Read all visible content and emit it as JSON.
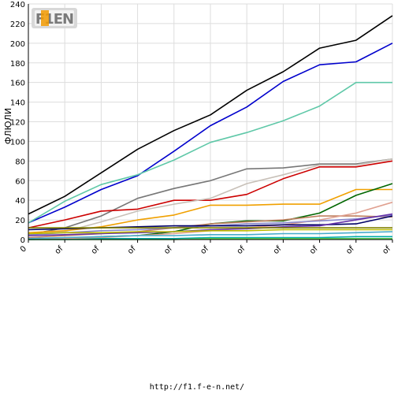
{
  "chart_data": {
    "type": "line",
    "ylabel": "ФЛЮЛИ",
    "ylim": [
      0,
      240
    ],
    "yticks": [
      0,
      20,
      40,
      60,
      80,
      100,
      120,
      140,
      160,
      180,
      200,
      220,
      240
    ],
    "x": [
      "0",
      "of",
      "of",
      "of",
      "of",
      "of",
      "of",
      "of",
      "of",
      "of",
      "of"
    ],
    "grid": true,
    "legend": "none",
    "series": [
      {
        "color": "#000000",
        "values": [
          26,
          44,
          68,
          92,
          111,
          127,
          152,
          171,
          195,
          203,
          228
        ]
      },
      {
        "color": "#0000cc",
        "values": [
          17,
          33,
          51,
          65,
          90,
          116,
          135,
          161,
          178,
          181,
          200
        ]
      },
      {
        "color": "#5fc8a8",
        "values": [
          17,
          39,
          56,
          66,
          81,
          99,
          109,
          121,
          136,
          160,
          160
        ]
      },
      {
        "color": "#777777",
        "values": [
          5,
          12,
          24,
          42,
          52,
          60,
          72,
          73,
          77,
          77,
          82
        ]
      },
      {
        "color": "#cc0000",
        "values": [
          12,
          20,
          29,
          31,
          40,
          40,
          46,
          62,
          74,
          74,
          80
        ]
      },
      {
        "color": "#c8c0b8",
        "values": [
          5,
          8,
          18,
          29,
          36,
          42,
          57,
          66,
          76,
          76,
          82
        ]
      },
      {
        "color": "#f0a000",
        "values": [
          7,
          9,
          13,
          20,
          25,
          35,
          35,
          36,
          36,
          51,
          51
        ]
      },
      {
        "color": "#006600",
        "values": [
          0,
          1,
          3,
          4,
          8,
          16,
          19,
          19,
          27,
          45,
          57
        ]
      },
      {
        "color": "#c08060",
        "values": [
          2,
          4,
          6,
          8,
          12,
          16,
          18,
          20,
          24,
          24,
          23
        ]
      },
      {
        "color": "#e0a090",
        "values": [
          0,
          1,
          2,
          4,
          6,
          9,
          12,
          15,
          20,
          27,
          38
        ]
      },
      {
        "color": "#8888cc",
        "values": [
          5,
          7,
          9,
          10,
          12,
          14,
          16,
          17,
          19,
          21,
          25
        ]
      },
      {
        "color": "#000066",
        "values": [
          10,
          11,
          12,
          13,
          14,
          14,
          14,
          15,
          15,
          16,
          24
        ]
      },
      {
        "color": "#6633aa",
        "values": [
          4,
          5,
          6,
          7,
          8,
          10,
          11,
          13,
          14,
          20,
          26
        ]
      },
      {
        "color": "#808000",
        "values": [
          12,
          12,
          12,
          12,
          12,
          12,
          12,
          12,
          12,
          12,
          12
        ]
      },
      {
        "color": "#bbbb00",
        "values": [
          6,
          7,
          7,
          8,
          8,
          9,
          9,
          10,
          10,
          10,
          10
        ]
      },
      {
        "color": "#44aacc",
        "values": [
          1,
          2,
          3,
          4,
          4,
          5,
          5,
          6,
          6,
          7,
          8
        ]
      },
      {
        "color": "#00aaaa",
        "values": [
          0,
          0,
          1,
          1,
          1,
          2,
          2,
          2,
          2,
          3,
          3
        ]
      },
      {
        "color": "#55cc55",
        "values": [
          0,
          0,
          0,
          0,
          0,
          1,
          1,
          1,
          1,
          1,
          1
        ]
      }
    ]
  },
  "footer": {
    "url": "http://f1.f-e-n.net/"
  },
  "logo": {
    "text": "F1EN"
  }
}
